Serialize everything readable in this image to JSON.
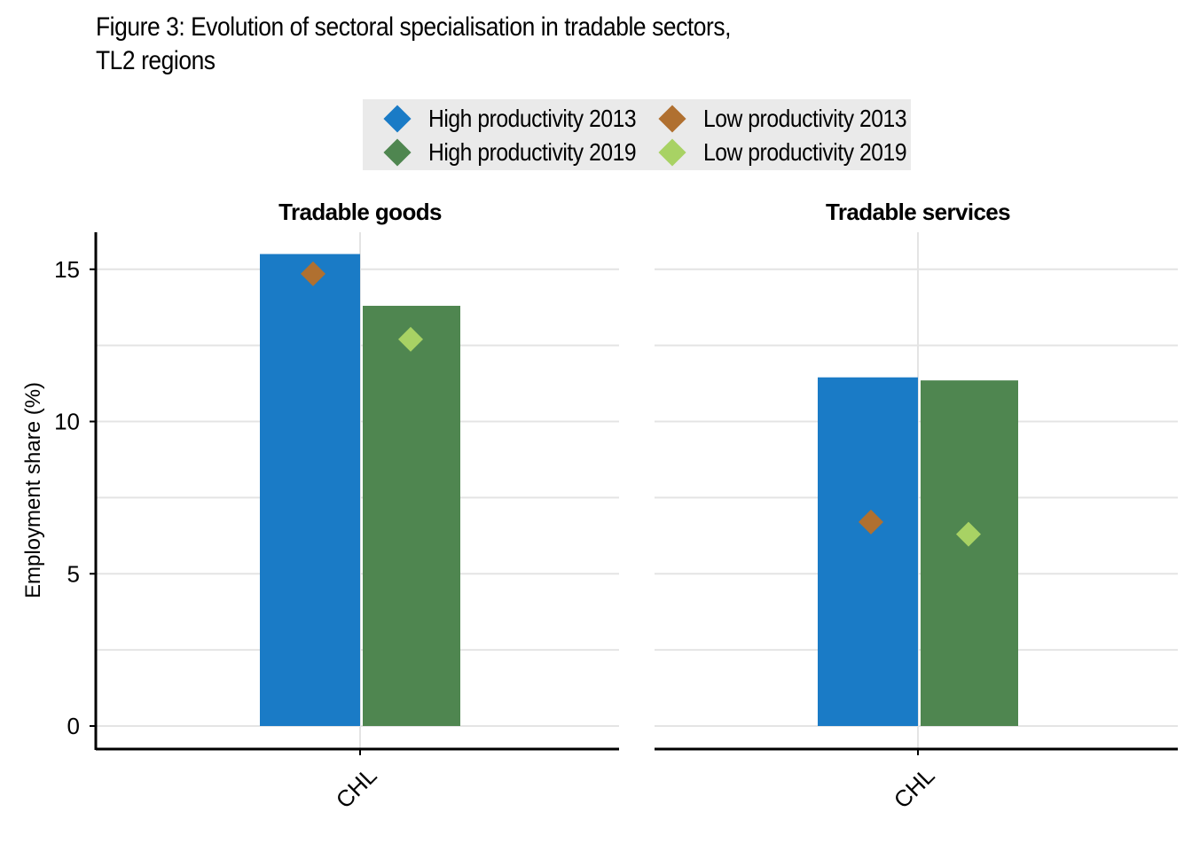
{
  "chart_data": {
    "type": "bar",
    "title_lines": [
      "Figure 3: Evolution of sectoral specialisation in tradable sectors,",
      "TL2 regions"
    ],
    "ylabel": "Employment share (%)",
    "ylim": [
      0,
      16
    ],
    "yticks": [
      0,
      5,
      10,
      15
    ],
    "grid": true,
    "legend_position": "top-center",
    "legend": [
      {
        "label": "High productivity 2013",
        "color": "#1a7bc6"
      },
      {
        "label": "Low productivity 2013",
        "color": "#b07030"
      },
      {
        "label": "High productivity 2019",
        "color": "#4f8650"
      },
      {
        "label": "Low productivity 2019",
        "color": "#a8d264"
      }
    ],
    "panels": [
      {
        "title": "Tradable goods",
        "categories": [
          "CHL"
        ],
        "bars": [
          {
            "name": "High productivity 2013",
            "value": 15.5,
            "color": "#1a7bc6"
          },
          {
            "name": "High productivity 2019",
            "value": 13.8,
            "color": "#4f8650"
          }
        ],
        "markers": [
          {
            "name": "Low productivity 2013",
            "value": 14.85,
            "color": "#b07030"
          },
          {
            "name": "Low productivity 2019",
            "value": 12.7,
            "color": "#a8d264"
          }
        ]
      },
      {
        "title": "Tradable services",
        "categories": [
          "CHL"
        ],
        "bars": [
          {
            "name": "High productivity 2013",
            "value": 11.45,
            "color": "#1a7bc6"
          },
          {
            "name": "High productivity 2019",
            "value": 11.35,
            "color": "#4f8650"
          }
        ],
        "markers": [
          {
            "name": "Low productivity 2013",
            "value": 6.7,
            "color": "#b07030"
          },
          {
            "name": "Low productivity 2019",
            "value": 6.3,
            "color": "#a8d264"
          }
        ]
      }
    ]
  }
}
